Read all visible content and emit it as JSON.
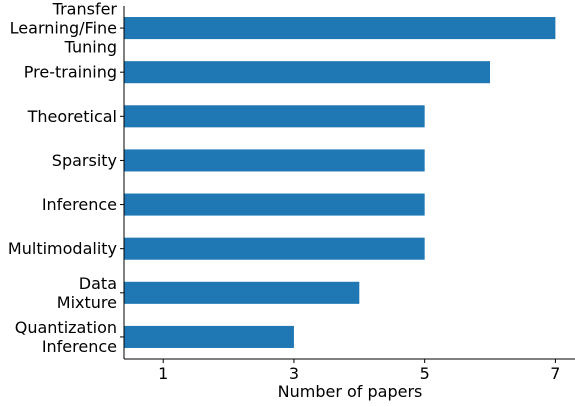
{
  "chart_data": {
    "type": "bar",
    "orientation": "horizontal",
    "categories": [
      [
        "Transfer",
        "Learning/Fine",
        "Tuning"
      ],
      [
        "Pre-training"
      ],
      [
        "Theoretical"
      ],
      [
        "Sparsity"
      ],
      [
        "Inference"
      ],
      [
        "Multimodality"
      ],
      [
        "Data",
        "Mixture"
      ],
      [
        "Quantization",
        "Inference"
      ]
    ],
    "values": [
      7,
      6,
      5,
      5,
      5,
      5,
      4,
      3
    ],
    "xlabel": "Number of papers",
    "ylabel": "",
    "title": "",
    "xlim": [
      0.4,
      7.3
    ],
    "xticks": [
      1,
      3,
      5,
      7
    ],
    "bar_color": "#1f77b4",
    "grid": false,
    "legend": "none"
  }
}
